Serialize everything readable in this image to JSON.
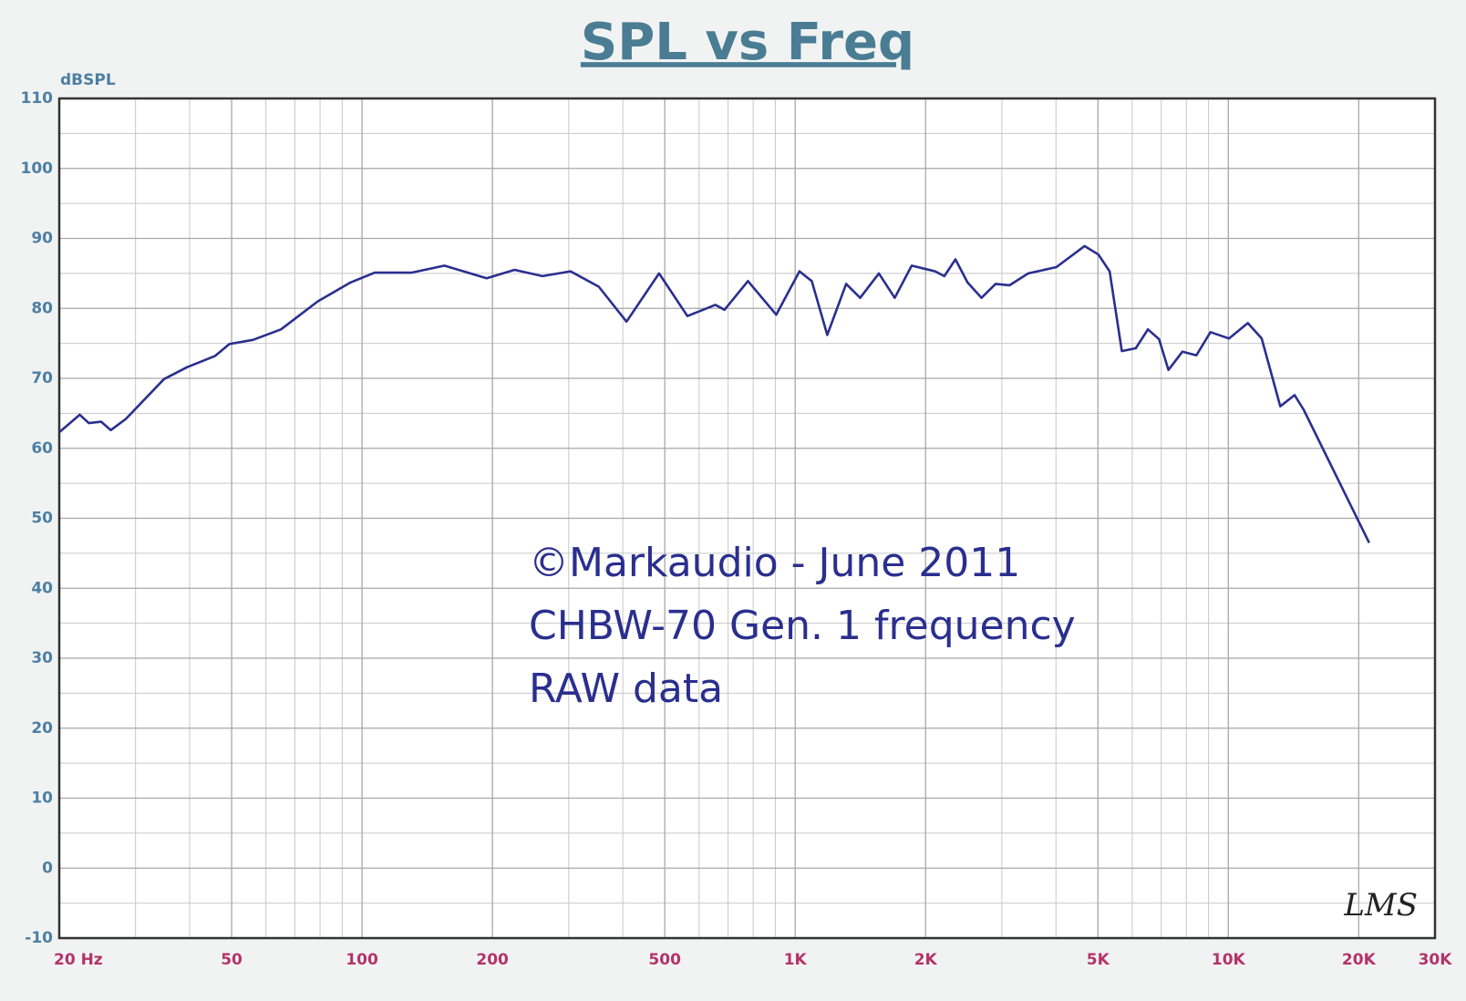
{
  "chart_data": {
    "type": "line",
    "title": "SPL vs Freq",
    "ylabel": "dBSPL",
    "xscale": "log",
    "xlim": [
      20,
      30000
    ],
    "ylim": [
      -10,
      110
    ],
    "xticks": [
      {
        "value": 20,
        "label": "20 Hz"
      },
      50,
      100,
      200,
      500,
      {
        "value": 1000,
        "label": "1K"
      },
      {
        "value": 2000,
        "label": "2K"
      },
      {
        "value": 5000,
        "label": "5K"
      },
      {
        "value": 10000,
        "label": "10K"
      },
      {
        "value": 20000,
        "label": "20K"
      },
      {
        "value": 30000,
        "label": "30K"
      }
    ],
    "xminorticks": [
      30,
      40,
      60,
      70,
      80,
      90,
      300,
      400,
      600,
      700,
      800,
      900,
      3000,
      4000,
      6000,
      7000,
      8000,
      9000
    ],
    "yticks": [
      -10,
      0,
      10,
      20,
      30,
      40,
      50,
      60,
      70,
      80,
      90,
      100,
      110
    ],
    "yminorticks": [
      -5,
      5,
      15,
      25,
      35,
      45,
      55,
      65,
      75,
      85,
      95,
      105
    ],
    "grid": true,
    "color": "#2a2f8e",
    "x": [
      20,
      22.3,
      23.4,
      25,
      26.3,
      28.5,
      34.9,
      39.5,
      45.8,
      49.4,
      56,
      65,
      79,
      94,
      107,
      130,
      155,
      194,
      225,
      261,
      303,
      352,
      408,
      485,
      564,
      654,
      687,
      778,
      904,
      1023,
      1092,
      1186,
      1311,
      1413,
      1560,
      1698,
      1858,
      2104,
      2210,
      2344,
      2500,
      2693,
      2902,
      3126,
      3452,
      4008,
      4656,
      5012,
      5321,
      5676,
      6113,
      6521,
      6920,
      7273,
      7834,
      8438,
      9094,
      10040,
      11092,
      11940,
      13180,
      14220,
      14930,
      21140
    ],
    "values": [
      62.3,
      64.8,
      63.6,
      63.8,
      62.6,
      64.2,
      69.9,
      71.6,
      73.2,
      74.9,
      75.5,
      77,
      81,
      83.7,
      85.1,
      85.1,
      86.1,
      84.3,
      85.5,
      84.6,
      85.3,
      83.1,
      78.1,
      85,
      78.9,
      80.5,
      79.8,
      83.9,
      79.1,
      85.3,
      83.9,
      76.2,
      83.5,
      81.5,
      85,
      81.5,
      86.1,
      85.3,
      84.6,
      87,
      83.7,
      81.5,
      83.5,
      83.3,
      85,
      85.9,
      88.9,
      87.7,
      85.3,
      73.9,
      74.3,
      77,
      75.6,
      71.2,
      73.8,
      73.3,
      76.6,
      75.7,
      77.9,
      75.7,
      66,
      67.6,
      65.5,
      46.5
    ],
    "annotations": [
      "©Markaudio - June 2011",
      "CHBW-70 Gen. 1 frequency",
      "RAW data"
    ],
    "watermark": "LMS"
  }
}
